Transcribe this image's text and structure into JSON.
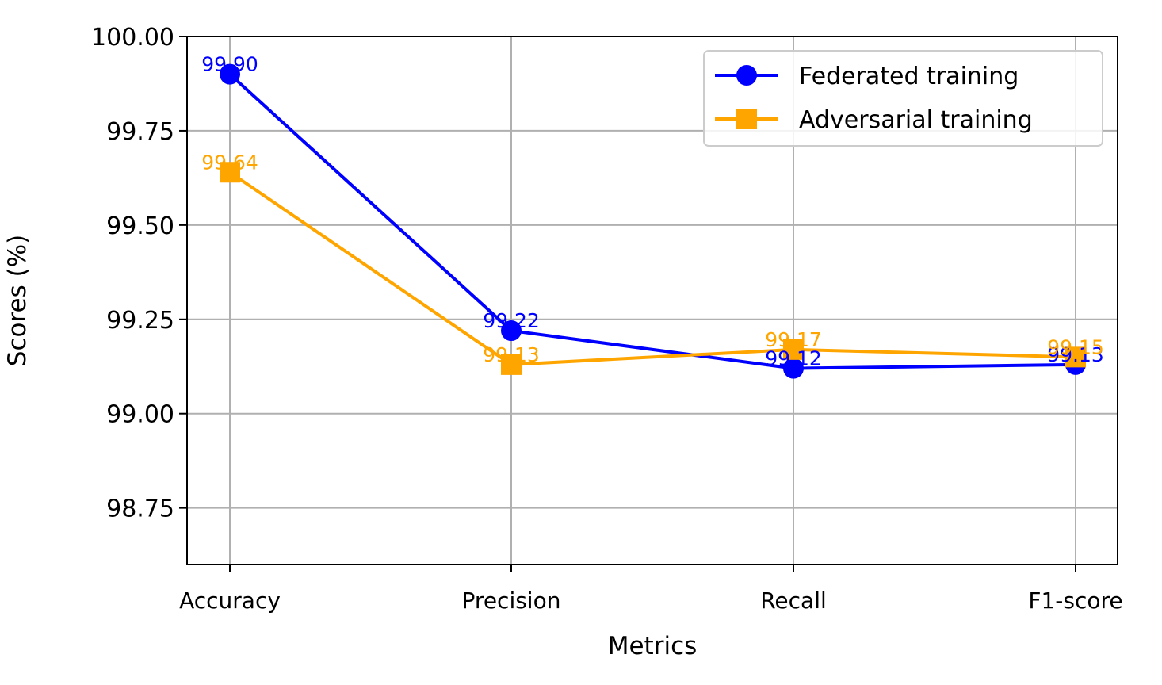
{
  "chart_data": {
    "type": "line",
    "title": "",
    "xlabel": "Metrics",
    "ylabel": "Scores (%)",
    "categories": [
      "Accuracy",
      "Precision",
      "Recall",
      "F1-score"
    ],
    "ylim": [
      98.6,
      100.0
    ],
    "yticks": [
      98.75,
      99.0,
      99.25,
      99.5,
      99.75,
      100.0
    ],
    "ytick_labels": [
      "98.75",
      "99.00",
      "99.25",
      "99.50",
      "99.75",
      "100.00"
    ],
    "grid": true,
    "legend_position": "top-right",
    "series": [
      {
        "name": "Federated training",
        "values": [
          99.9,
          99.22,
          99.12,
          99.13
        ],
        "labels": [
          "99.90",
          "99.22",
          "99.12",
          "99.13"
        ],
        "color": "#0000ff",
        "marker": "circle"
      },
      {
        "name": "Adversarial training",
        "values": [
          99.64,
          99.13,
          99.17,
          99.15
        ],
        "labels": [
          "99.64",
          "99.13",
          "99.17",
          "99.15"
        ],
        "color": "#ffa500",
        "marker": "square"
      }
    ]
  }
}
